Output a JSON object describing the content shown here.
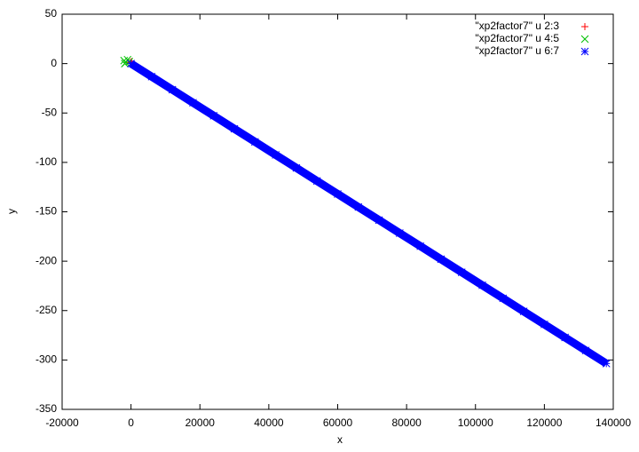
{
  "chart_data": {
    "type": "scatter",
    "x_label": "x",
    "y_label": "y",
    "xlim": [
      -20000,
      140000
    ],
    "ylim": [
      -350,
      50
    ],
    "xticks": [
      -20000,
      0,
      20000,
      40000,
      60000,
      80000,
      100000,
      120000,
      140000
    ],
    "yticks": [
      50,
      0,
      -50,
      -100,
      -150,
      -200,
      -250,
      -300,
      -350
    ],
    "legend": "top-right",
    "series": [
      {
        "name": "\"xp2factor7\" u 2:3",
        "color": "#ff0000",
        "marker": "plus",
        "x": [
          -200,
          100,
          300
        ],
        "values": [
          1,
          2,
          0
        ]
      },
      {
        "name": "\"xp2factor7\" u 4:5",
        "color": "#00c000",
        "marker": "cross",
        "x": [
          -2000,
          -1500,
          -1000,
          -500,
          -1800
        ],
        "values": [
          3,
          1,
          4,
          2,
          0
        ]
      },
      {
        "name": "\"xp2factor7\" u 6:7",
        "color": "#0000ff",
        "marker": "star",
        "x": [
          0,
          6000,
          12000,
          18000,
          24000,
          30000,
          36000,
          42000,
          48000,
          54000,
          60000,
          66000,
          72000,
          78000,
          84000,
          90000,
          96000,
          102000,
          108000,
          114000,
          120000,
          126000,
          132000,
          138000
        ],
        "values": [
          0,
          -13.2,
          -26.4,
          -39.6,
          -52.8,
          -66,
          -79.2,
          -92.4,
          -105.6,
          -118.8,
          -132,
          -145.2,
          -158.4,
          -171.6,
          -184.8,
          -198,
          -211.2,
          -224.4,
          -237.6,
          -250.8,
          -264,
          -277.2,
          -290.4,
          -303.6
        ]
      }
    ]
  }
}
